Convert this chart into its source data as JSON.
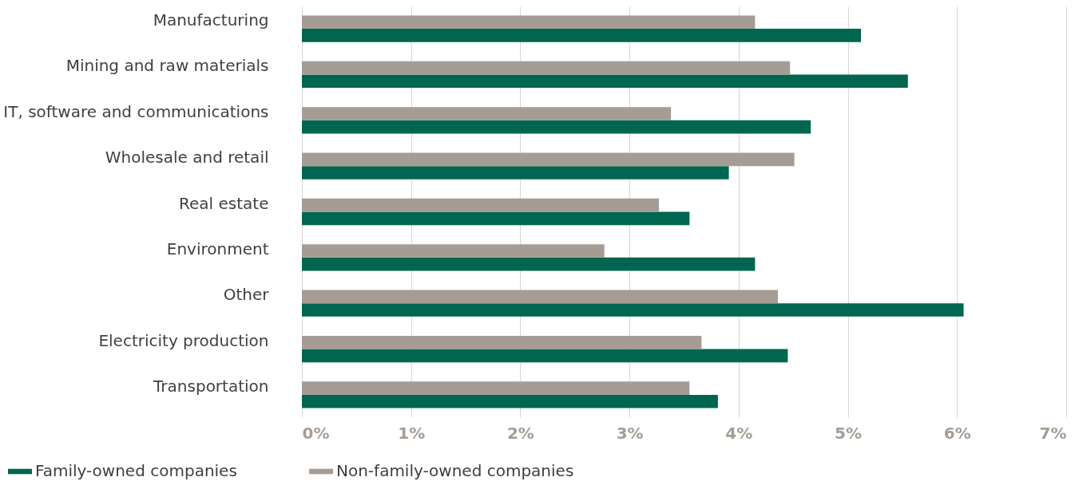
{
  "chart_data": {
    "type": "bar",
    "orientation": "horizontal",
    "categories": [
      "Manufacturing",
      "Mining and raw materials",
      "IT, software and communications",
      "Wholesale and retail",
      "Real estate",
      "Environment",
      "Other",
      "Electricity production",
      "Transportation"
    ],
    "series": [
      {
        "name": "Family-owned companies",
        "color": "#00664f",
        "values": [
          5.12,
          5.55,
          4.66,
          3.91,
          3.55,
          4.15,
          6.06,
          4.45,
          3.81
        ]
      },
      {
        "name": "Non-family-owned companies",
        "color": "#a59d95",
        "values": [
          4.15,
          4.47,
          3.38,
          4.51,
          3.27,
          2.77,
          4.36,
          3.66,
          3.55
        ]
      }
    ],
    "xlim": [
      0,
      7
    ],
    "xticks": [
      {
        "value": 0,
        "label": "0%"
      },
      {
        "value": 1,
        "label": "1%"
      },
      {
        "value": 2,
        "label": "2%"
      },
      {
        "value": 3,
        "label": "3%"
      },
      {
        "value": 4,
        "label": "4%"
      },
      {
        "value": 5,
        "label": "5%"
      },
      {
        "value": 6,
        "label": "6%"
      },
      {
        "value": 7,
        "label": "7%"
      }
    ],
    "grid": "x",
    "legend": "bottom left"
  }
}
